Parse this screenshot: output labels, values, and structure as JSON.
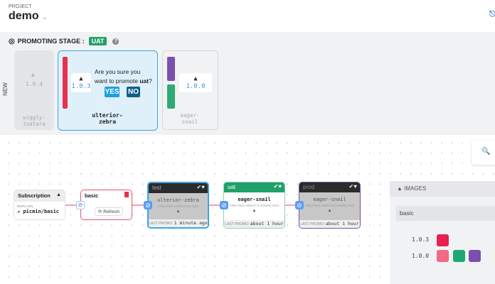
{
  "header": {
    "project_label": "PROJECT",
    "project_name": "demo",
    "dropdown_icon": "chevron-down-icon",
    "graph_icon": "graph-icon"
  },
  "promotion": {
    "title": "PROMOTING STAGE :",
    "stage_badge": "UAT",
    "help_icon": "question-icon",
    "new_label": "NEW",
    "freight": [
      {
        "name": "wiggly-\ntuatara",
        "version": "1.0.4"
      },
      {
        "name": "ulterior-\nzebra",
        "version": "1.0.3",
        "confirm_text_1": "Are you sure you",
        "confirm_text_2": "want to promote ",
        "confirm_stage": "uat",
        "confirm_q": "?",
        "yes_label": "YES",
        "no_label": "NO"
      },
      {
        "name": "eager-\nsnail",
        "version": "1.0.0"
      }
    ]
  },
  "graph": {
    "subscription": {
      "title": "Subscription",
      "repo_label": "REPO URL",
      "repo": "picmin/basic"
    },
    "warehouse": {
      "title": "basic",
      "refresh_label": "Refresh"
    },
    "stages": [
      {
        "name": "test",
        "freight": "ulterior-zebra",
        "created": "CREATED 3 MINUTES AGO",
        "last_promo_label": "LAST PROMO:",
        "last_promo": "1 minute ago",
        "color": "#3aa7e0"
      },
      {
        "name": "uat",
        "freight": "eager-snail",
        "created": "CREATED ABOUT 8 HOURS AGO",
        "last_promo_label": "LAST PROMO:",
        "last_promo": "about 1 hour ago",
        "color": "#21a06a"
      },
      {
        "name": "prod",
        "freight": "eager-snail",
        "created": "CREATED ABOUT 8 HOURS AGO",
        "last_promo_label": "LAST PROMO:",
        "last_promo": "about 1 hour ago",
        "color": "#7b4fae"
      }
    ]
  },
  "images": {
    "title": "IMAGES",
    "repo": "basic",
    "rows": [
      {
        "tag": "1.0.3",
        "colors": [
          "#e8204f"
        ]
      },
      {
        "tag": "1.0.0",
        "colors": [
          "#ee6a85",
          "#1fa872",
          "#7b4fae"
        ]
      }
    ]
  },
  "colors": {
    "accent": "#3aa7e0",
    "uat": "#21a06a",
    "yes": "#1ea0e0",
    "no": "#0f5f8a"
  }
}
